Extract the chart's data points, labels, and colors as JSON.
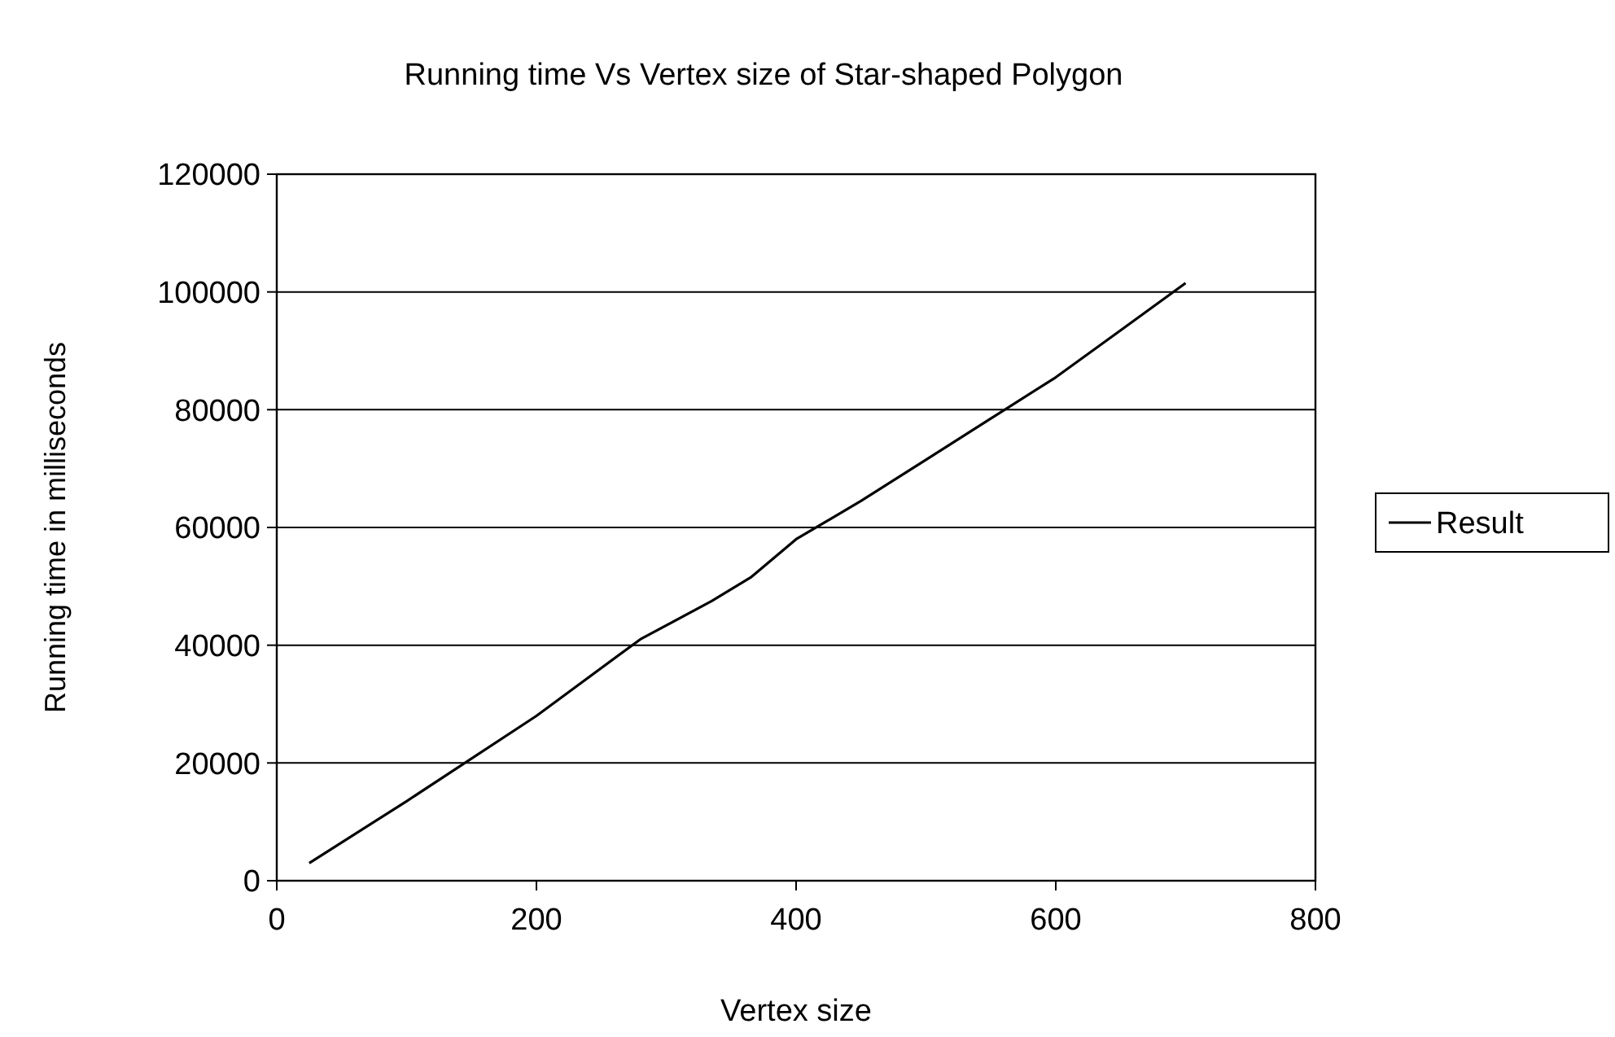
{
  "chart_data": {
    "type": "line",
    "title": "Running time Vs Vertex size of Star-shaped Polygon",
    "xlabel": "Vertex size",
    "ylabel": "Running time in milliseconds",
    "x": [
      25,
      100,
      200,
      280,
      335,
      365,
      400,
      450,
      500,
      550,
      600,
      650,
      700
    ],
    "series": [
      {
        "name": "Result",
        "color": "#000000",
        "values": [
          3000,
          13500,
          28000,
          41000,
          47500,
          51500,
          58000,
          64500,
          71500,
          78500,
          85500,
          93500,
          101500
        ]
      }
    ],
    "xlim": [
      0,
      800
    ],
    "xticks": [
      0,
      200,
      400,
      600,
      800
    ],
    "ylim": [
      0,
      120000
    ],
    "yticks": [
      0,
      20000,
      40000,
      60000,
      80000,
      100000,
      120000
    ],
    "grid": "y",
    "legend": "right",
    "marker": "none",
    "line_style": "solid"
  }
}
